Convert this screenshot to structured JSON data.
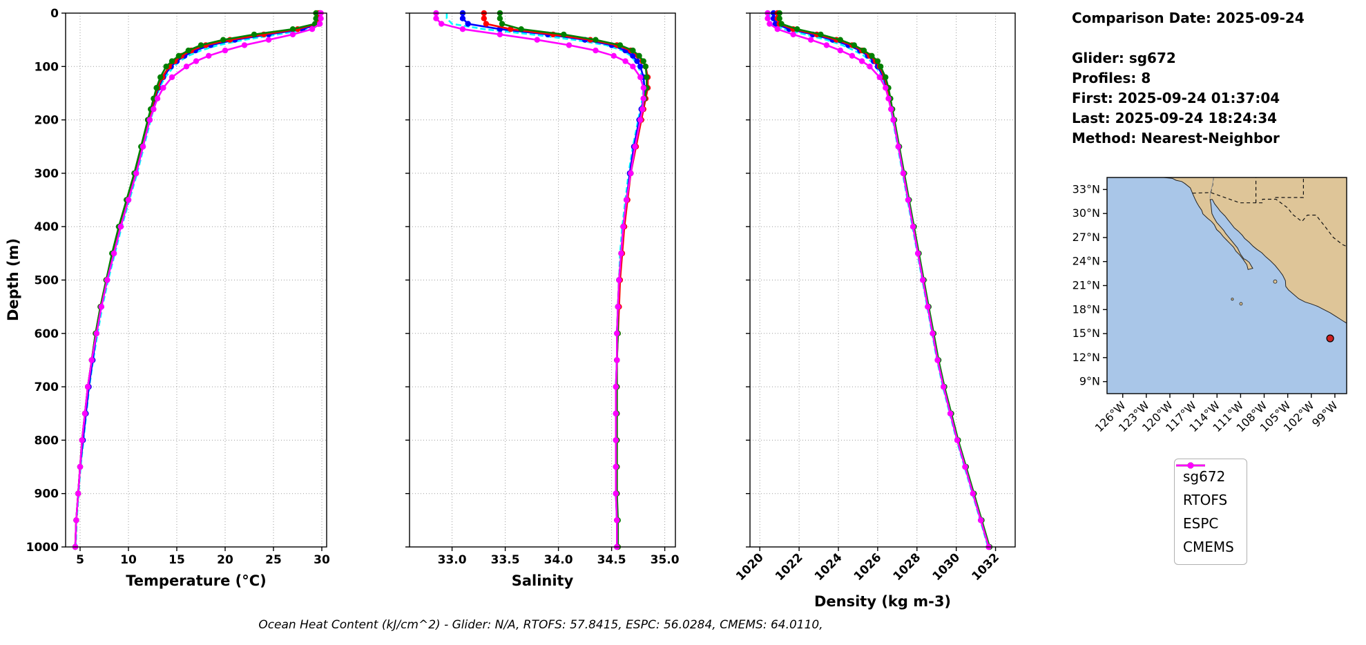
{
  "info": {
    "lines": [
      "Comparison Date: 2025-09-24",
      "",
      "Glider: sg672",
      "Profiles: 8",
      "First: 2025-09-24 01:37:04",
      "Last: 2025-09-24 18:24:34",
      "Method: Nearest-Neighbor"
    ]
  },
  "caption": "Ocean Heat Content (kJ/cm^2) - Glider: N/A,  RTOFS: 57.8415,  ESPC: 56.0284,  CMEMS: 64.0110,",
  "map": {
    "ocean_color": "#a9c6e8",
    "land_color": "#dec598",
    "lat_ticks": [
      {
        "v": 33,
        "label": "33°N"
      },
      {
        "v": 30,
        "label": "30°N"
      },
      {
        "v": 27,
        "label": "27°N"
      },
      {
        "v": 24,
        "label": "24°N"
      },
      {
        "v": 21,
        "label": "21°N"
      },
      {
        "v": 18,
        "label": "18°N"
      },
      {
        "v": 15,
        "label": "15°N"
      },
      {
        "v": 12,
        "label": "12°N"
      },
      {
        "v": 9,
        "label": "9°N"
      }
    ],
    "lon_ticks": [
      {
        "v": -126,
        "label": "126°W"
      },
      {
        "v": -123,
        "label": "123°W"
      },
      {
        "v": -120,
        "label": "120°W"
      },
      {
        "v": -117,
        "label": "117°W"
      },
      {
        "v": -114,
        "label": "114°W"
      },
      {
        "v": -111,
        "label": "111°W"
      },
      {
        "v": -108,
        "label": "108°W"
      },
      {
        "v": -105,
        "label": "105°W"
      },
      {
        "v": -102,
        "label": "102°W"
      },
      {
        "v": -99,
        "label": "99°W"
      }
    ],
    "marker": {
      "lon": -99.6,
      "lat": 14.4,
      "color": "#cc2020"
    }
  },
  "chart_data": {
    "type": "line",
    "title": "Glider vs model vertical profiles",
    "y": {
      "label": "Depth (m)",
      "lim": [
        0,
        1000
      ],
      "ticks": [
        0,
        100,
        200,
        300,
        400,
        500,
        600,
        700,
        800,
        900,
        1000
      ]
    },
    "panels": [
      {
        "id": "temperature",
        "xlabel": "Temperature (°C)",
        "xlim": [
          3.5,
          30.5
        ],
        "xticks": [
          {
            "v": 5,
            "label": "5"
          },
          {
            "v": 10,
            "label": "10"
          },
          {
            "v": 15,
            "label": "15"
          },
          {
            "v": 20,
            "label": "20"
          },
          {
            "v": 25,
            "label": "25"
          },
          {
            "v": 30,
            "label": "30"
          }
        ],
        "show_ylabels": true,
        "rotate_xticks": false
      },
      {
        "id": "salinity",
        "xlabel": "Salinity",
        "xlim": [
          32.6,
          35.1
        ],
        "xticks": [
          {
            "v": 33.0,
            "label": "33.0"
          },
          {
            "v": 33.5,
            "label": "33.5"
          },
          {
            "v": 34.0,
            "label": "34.0"
          },
          {
            "v": 34.5,
            "label": "34.5"
          },
          {
            "v": 35.0,
            "label": "35.0"
          }
        ],
        "show_ylabels": false,
        "rotate_xticks": false
      },
      {
        "id": "density",
        "xlabel": "Density (kg m-3)",
        "xlim": [
          1019.5,
          1033.0
        ],
        "xticks": [
          {
            "v": 1020,
            "label": "1020"
          },
          {
            "v": 1022,
            "label": "1022"
          },
          {
            "v": 1024,
            "label": "1024"
          },
          {
            "v": 1026,
            "label": "1026"
          },
          {
            "v": 1028,
            "label": "1028"
          },
          {
            "v": 1030,
            "label": "1030"
          },
          {
            "v": 1032,
            "label": "1032"
          }
        ],
        "show_ylabels": false,
        "rotate_xticks": true
      }
    ],
    "depths": [
      0,
      10,
      20,
      30,
      40,
      50,
      60,
      70,
      80,
      90,
      100,
      120,
      140,
      160,
      180,
      200,
      250,
      300,
      350,
      400,
      450,
      500,
      550,
      600,
      650,
      700,
      750,
      800,
      850,
      900,
      950,
      1000
    ],
    "series": [
      {
        "name": "sg672 profiles",
        "color": "#00ffff",
        "in_legend": false,
        "markers": false,
        "dashed": true,
        "temperature": [
          29.9,
          29.9,
          29.8,
          28.6,
          25.5,
          22.0,
          19.3,
          17.5,
          16.2,
          15.3,
          14.7,
          13.8,
          13.2,
          12.9,
          12.6,
          12.3,
          11.6,
          10.9,
          10.1,
          9.3,
          8.6,
          7.9,
          7.3,
          6.8,
          6.35,
          5.95,
          5.65,
          5.35,
          5.05,
          4.85,
          4.65,
          4.55
        ],
        "salinity": [
          32.95,
          32.95,
          33.0,
          33.3,
          33.75,
          34.15,
          34.45,
          34.6,
          34.68,
          34.72,
          34.75,
          34.79,
          34.8,
          34.79,
          34.77,
          34.75,
          34.7,
          34.66,
          34.63,
          34.6,
          34.58,
          34.57,
          34.56,
          34.55,
          34.55,
          34.54,
          34.54,
          34.54,
          34.54,
          34.54,
          34.55,
          34.55
        ],
        "density": [
          1020.5,
          1020.5,
          1020.6,
          1021.2,
          1022.3,
          1023.4,
          1024.2,
          1024.8,
          1025.3,
          1025.65,
          1025.9,
          1026.25,
          1026.42,
          1026.57,
          1026.67,
          1026.77,
          1027.02,
          1027.27,
          1027.52,
          1027.77,
          1028.02,
          1028.27,
          1028.52,
          1028.77,
          1029.02,
          1029.32,
          1029.67,
          1030.02,
          1030.42,
          1030.82,
          1031.22,
          1031.62
        ]
      },
      {
        "name": "sg672",
        "color": "#0000ff",
        "in_legend": true,
        "markers": true,
        "dashed": false,
        "temperature": [
          29.8,
          29.8,
          29.7,
          28.0,
          24.5,
          21.0,
          18.5,
          16.9,
          15.8,
          15.0,
          14.4,
          13.6,
          13.1,
          12.8,
          12.5,
          12.2,
          11.5,
          10.8,
          10.0,
          9.2,
          8.5,
          7.8,
          7.2,
          6.7,
          6.3,
          5.9,
          5.6,
          5.3,
          5.0,
          4.8,
          4.6,
          4.5
        ],
        "salinity": [
          33.1,
          33.1,
          33.15,
          33.45,
          33.9,
          34.25,
          34.5,
          34.63,
          34.7,
          34.74,
          34.77,
          34.8,
          34.81,
          34.8,
          34.78,
          34.76,
          34.71,
          34.67,
          34.64,
          34.61,
          34.59,
          34.57,
          34.56,
          34.55,
          34.55,
          34.54,
          34.54,
          34.54,
          34.54,
          34.54,
          34.55,
          34.55
        ],
        "density": [
          1020.7,
          1020.7,
          1020.8,
          1021.5,
          1022.7,
          1023.7,
          1024.5,
          1025.1,
          1025.5,
          1025.8,
          1026.0,
          1026.3,
          1026.45,
          1026.6,
          1026.7,
          1026.8,
          1027.05,
          1027.3,
          1027.55,
          1027.8,
          1028.05,
          1028.3,
          1028.55,
          1028.8,
          1029.05,
          1029.35,
          1029.7,
          1030.05,
          1030.45,
          1030.85,
          1031.25,
          1031.65
        ]
      },
      {
        "name": "RTOFS",
        "color": "#ff0000",
        "in_legend": true,
        "markers": true,
        "dashed": false,
        "temperature": [
          29.6,
          29.6,
          29.5,
          27.5,
          24.0,
          20.5,
          18.0,
          16.5,
          15.5,
          14.8,
          14.2,
          13.5,
          13.0,
          12.7,
          12.4,
          12.1,
          11.4,
          10.7,
          9.9,
          9.1,
          8.4,
          7.7,
          7.1,
          6.6,
          6.2,
          5.8,
          5.5,
          5.2,
          5.0,
          4.8,
          4.6,
          4.5
        ],
        "salinity": [
          33.3,
          33.3,
          33.32,
          33.55,
          33.95,
          34.3,
          34.55,
          34.68,
          34.75,
          34.79,
          34.82,
          34.84,
          34.84,
          34.82,
          34.8,
          34.78,
          34.73,
          34.68,
          34.65,
          34.62,
          34.6,
          34.58,
          34.57,
          34.56,
          34.55,
          34.55,
          34.55,
          34.55,
          34.55,
          34.55,
          34.55,
          34.56
        ],
        "density": [
          1020.9,
          1020.9,
          1021.0,
          1021.7,
          1022.9,
          1023.9,
          1024.7,
          1025.2,
          1025.6,
          1025.9,
          1026.1,
          1026.35,
          1026.5,
          1026.62,
          1026.72,
          1026.82,
          1027.07,
          1027.32,
          1027.57,
          1027.82,
          1028.07,
          1028.32,
          1028.57,
          1028.82,
          1029.07,
          1029.37,
          1029.72,
          1030.07,
          1030.47,
          1030.87,
          1031.27,
          1031.67
        ]
      },
      {
        "name": "ESPC",
        "color": "#008000",
        "in_legend": true,
        "markers": true,
        "dashed": false,
        "temperature": [
          29.4,
          29.4,
          29.3,
          27.0,
          23.0,
          19.8,
          17.5,
          16.2,
          15.2,
          14.5,
          13.9,
          13.3,
          12.9,
          12.6,
          12.3,
          12.0,
          11.3,
          10.6,
          9.8,
          9.0,
          8.3,
          7.7,
          7.1,
          6.6,
          6.2,
          5.8,
          5.5,
          5.2,
          5.0,
          4.8,
          4.6,
          4.5
        ],
        "salinity": [
          33.45,
          33.45,
          33.47,
          33.65,
          34.05,
          34.35,
          34.58,
          34.7,
          34.76,
          34.8,
          34.82,
          34.83,
          34.83,
          34.81,
          34.79,
          34.77,
          34.72,
          34.68,
          34.64,
          34.61,
          34.59,
          34.57,
          34.56,
          34.56,
          34.55,
          34.55,
          34.55,
          34.55,
          34.55,
          34.55,
          34.56,
          34.56
        ],
        "density": [
          1021.0,
          1021.0,
          1021.1,
          1021.9,
          1023.1,
          1024.1,
          1024.8,
          1025.3,
          1025.7,
          1026.0,
          1026.15,
          1026.4,
          1026.55,
          1026.65,
          1026.75,
          1026.85,
          1027.1,
          1027.35,
          1027.6,
          1027.85,
          1028.1,
          1028.35,
          1028.6,
          1028.85,
          1029.1,
          1029.4,
          1029.75,
          1030.1,
          1030.5,
          1030.9,
          1031.3,
          1031.7
        ]
      },
      {
        "name": "CMEMS",
        "color": "#ff00ff",
        "in_legend": true,
        "markers": true,
        "dashed": false,
        "temperature": [
          29.9,
          29.9,
          29.8,
          29.0,
          27.0,
          24.5,
          22.0,
          20.0,
          18.3,
          17.0,
          16.0,
          14.5,
          13.6,
          13.0,
          12.6,
          12.2,
          11.5,
          10.8,
          10.0,
          9.2,
          8.5,
          7.8,
          7.2,
          6.7,
          6.2,
          5.8,
          5.5,
          5.2,
          5.0,
          4.8,
          4.6,
          4.5
        ],
        "salinity": [
          32.85,
          32.85,
          32.9,
          33.1,
          33.45,
          33.8,
          34.1,
          34.35,
          34.52,
          34.63,
          34.7,
          34.77,
          34.8,
          34.8,
          34.79,
          34.77,
          34.72,
          34.68,
          34.64,
          34.61,
          34.59,
          34.57,
          34.56,
          34.55,
          34.55,
          34.54,
          34.54,
          34.54,
          34.54,
          34.54,
          34.55,
          34.55
        ],
        "density": [
          1020.4,
          1020.4,
          1020.5,
          1020.9,
          1021.7,
          1022.6,
          1023.4,
          1024.1,
          1024.7,
          1025.2,
          1025.6,
          1026.1,
          1026.4,
          1026.55,
          1026.68,
          1026.8,
          1027.05,
          1027.3,
          1027.55,
          1027.8,
          1028.05,
          1028.3,
          1028.55,
          1028.8,
          1029.05,
          1029.35,
          1029.7,
          1030.05,
          1030.45,
          1030.85,
          1031.25,
          1031.65
        ]
      }
    ]
  }
}
